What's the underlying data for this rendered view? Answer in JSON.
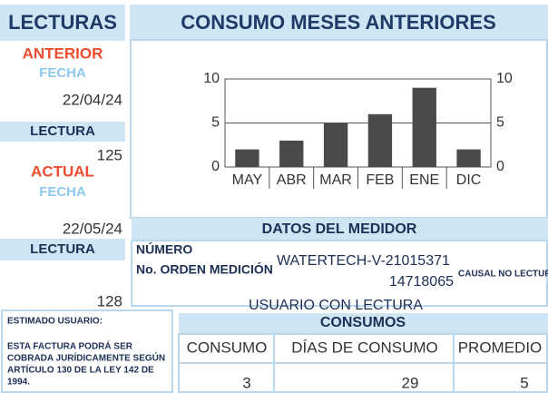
{
  "lecturas": {
    "title": "LECTURAS",
    "anterior": {
      "label": "ANTERIOR",
      "fecha_label": "FECHA",
      "fecha": "22/04/24",
      "lectura_label": "LECTURA",
      "lectura": 125
    },
    "actual": {
      "label": "ACTUAL",
      "fecha_label": "FECHA",
      "fecha": "22/05/24",
      "lectura_label": "LECTURA",
      "lectura": 128
    }
  },
  "chart_data": {
    "type": "bar",
    "title": "CONSUMO MESES ANTERIORES",
    "categories": [
      "MAY",
      "ABR",
      "MAR",
      "FEB",
      "ENE",
      "DIC"
    ],
    "values": [
      2,
      3,
      5,
      6,
      9,
      2
    ],
    "color": "#4a4a4a",
    "ylim": [
      0,
      10
    ],
    "yticks": [
      0,
      5,
      10
    ],
    "grid": true
  },
  "medidor": {
    "title": "DATOS DEL MEDIDOR",
    "numero_label": "NÚMERO",
    "orden_label": "No. ORDEN MEDICIÓN",
    "numero": "WATERTECH-V-21015371",
    "orden": "14718065",
    "causal": "CAUSAL NO LECTURA",
    "estado": "USUARIO CON LECTURA"
  },
  "aviso": {
    "title": "ESTIMADO USUARIO:",
    "lines": [
      "ESTA FACTURA PODRÁ SER",
      "COBRADA JURÍDICAMENTE SEGÚN",
      "ARTÍCULO 130 DE LA LEY 142 DE",
      "1994."
    ]
  },
  "consumos": {
    "title": "CONSUMOS",
    "headers": [
      "CONSUMO",
      "DÍAS DE CONSUMO",
      "PROMEDIO"
    ],
    "values": [
      3,
      29,
      5
    ]
  }
}
